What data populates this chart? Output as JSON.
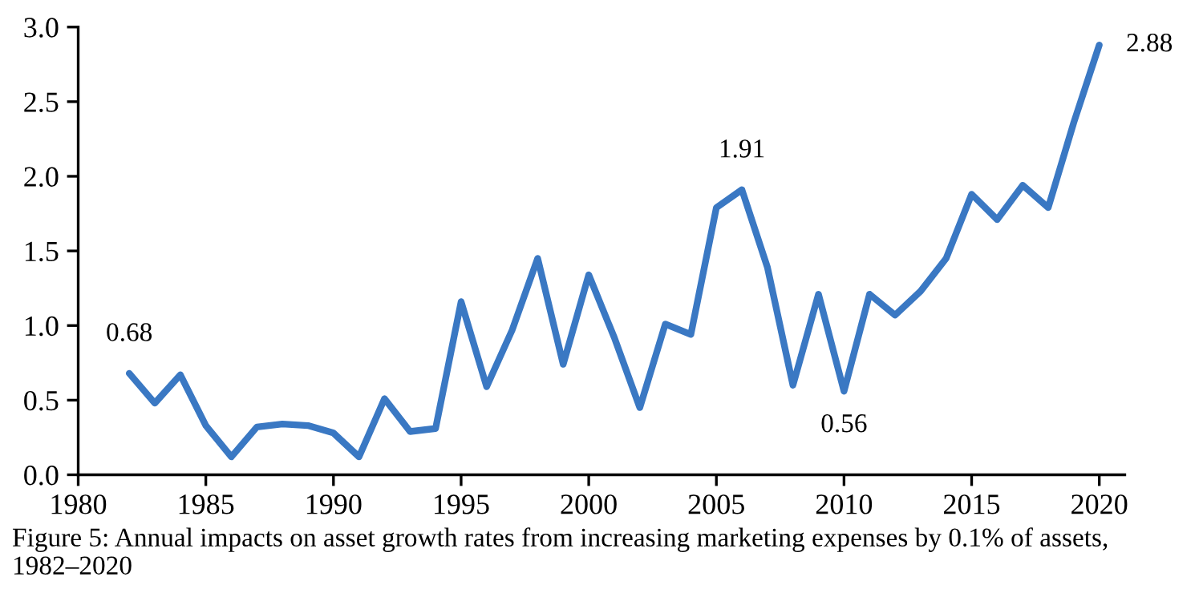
{
  "chart_data": {
    "type": "line",
    "x": [
      1982,
      1983,
      1984,
      1985,
      1986,
      1987,
      1988,
      1989,
      1990,
      1991,
      1992,
      1993,
      1994,
      1995,
      1996,
      1997,
      1998,
      1999,
      2000,
      2001,
      2002,
      2003,
      2004,
      2005,
      2006,
      2007,
      2008,
      2009,
      2010,
      2011,
      2012,
      2013,
      2014,
      2015,
      2016,
      2017,
      2018,
      2019,
      2020
    ],
    "series": [
      {
        "color": "#3a78c3",
        "values": [
          0.68,
          0.48,
          0.67,
          0.33,
          0.12,
          0.32,
          0.34,
          0.33,
          0.28,
          0.12,
          0.51,
          0.29,
          0.31,
          1.16,
          0.59,
          0.97,
          1.45,
          0.74,
          1.34,
          0.92,
          0.45,
          1.01,
          0.94,
          1.79,
          1.91,
          1.39,
          0.6,
          1.21,
          0.56,
          1.21,
          1.07,
          1.23,
          1.45,
          1.88,
          1.71,
          1.94,
          1.79,
          2.36,
          2.88
        ]
      }
    ],
    "annotations": [
      {
        "text": "0.68",
        "x": 1982,
        "y": 0.68
      },
      {
        "text": "1.91",
        "x": 2006,
        "y": 1.91
      },
      {
        "text": "0.56",
        "x": 2010,
        "y": 0.56
      },
      {
        "text": "2.88",
        "x": 2020,
        "y": 2.88
      },
      "Figure 5: Annual impacts on asset growth rates from increasing marketing expenses by 0.1% of assets, 1982–2020"
    ],
    "xlim": [
      1980,
      2021
    ],
    "xticks": [
      1980,
      1985,
      1990,
      1995,
      2000,
      2005,
      2010,
      2015,
      2020
    ],
    "ylim": [
      0,
      3
    ],
    "yticks": [
      {
        "value": 0,
        "label": "0.0"
      },
      {
        "value": 0.5,
        "label": "0.5"
      },
      {
        "value": 1,
        "label": "1.0"
      },
      {
        "value": 1.5,
        "label": "1.5"
      },
      {
        "value": 2,
        "label": "2.0"
      },
      {
        "value": 2.5,
        "label": "2.5"
      },
      {
        "value": 3,
        "label": "3.0"
      }
    ],
    "grid": false,
    "legend": false,
    "marker": "none",
    "line_style": "solid"
  }
}
